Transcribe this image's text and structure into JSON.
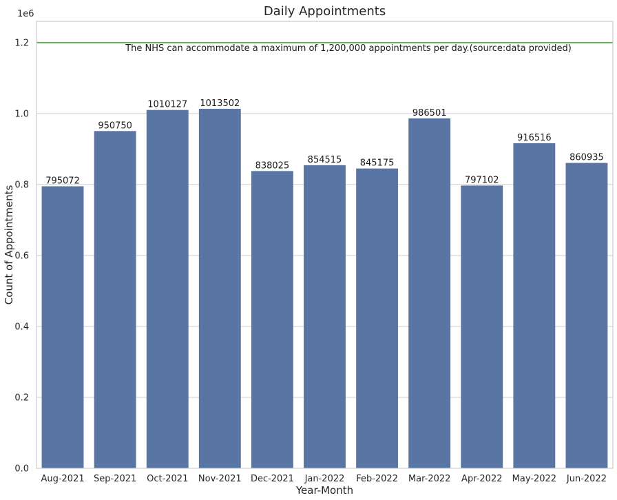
{
  "chart_data": {
    "type": "bar",
    "title": "Daily Appointments",
    "xlabel": "Year-Month",
    "ylabel": "Count of Appointments",
    "y_offset_label": "1e6",
    "categories": [
      "Aug-2021",
      "Sep-2021",
      "Oct-2021",
      "Nov-2021",
      "Dec-2021",
      "Jan-2022",
      "Feb-2022",
      "Mar-2022",
      "Apr-2022",
      "May-2022",
      "Jun-2022"
    ],
    "values": [
      795072,
      950750,
      1010127,
      1013502,
      838025,
      854515,
      845175,
      986501,
      797102,
      916516,
      860935
    ],
    "ylim": [
      0,
      1260000
    ],
    "yticks": [
      0,
      200000,
      400000,
      600000,
      800000,
      1000000,
      1200000
    ],
    "ytick_labels": [
      "0.0",
      "0.2",
      "0.4",
      "0.6",
      "0.8",
      "1.0",
      "1.2"
    ],
    "grid": "horizontal",
    "bar_color": "#5975a4",
    "reference_line": {
      "value": 1200000,
      "color": "#5fae5c",
      "annotation": "The NHS can accommodate a maximum of 1,200,000 appointments per day.(source:data provided)"
    }
  }
}
